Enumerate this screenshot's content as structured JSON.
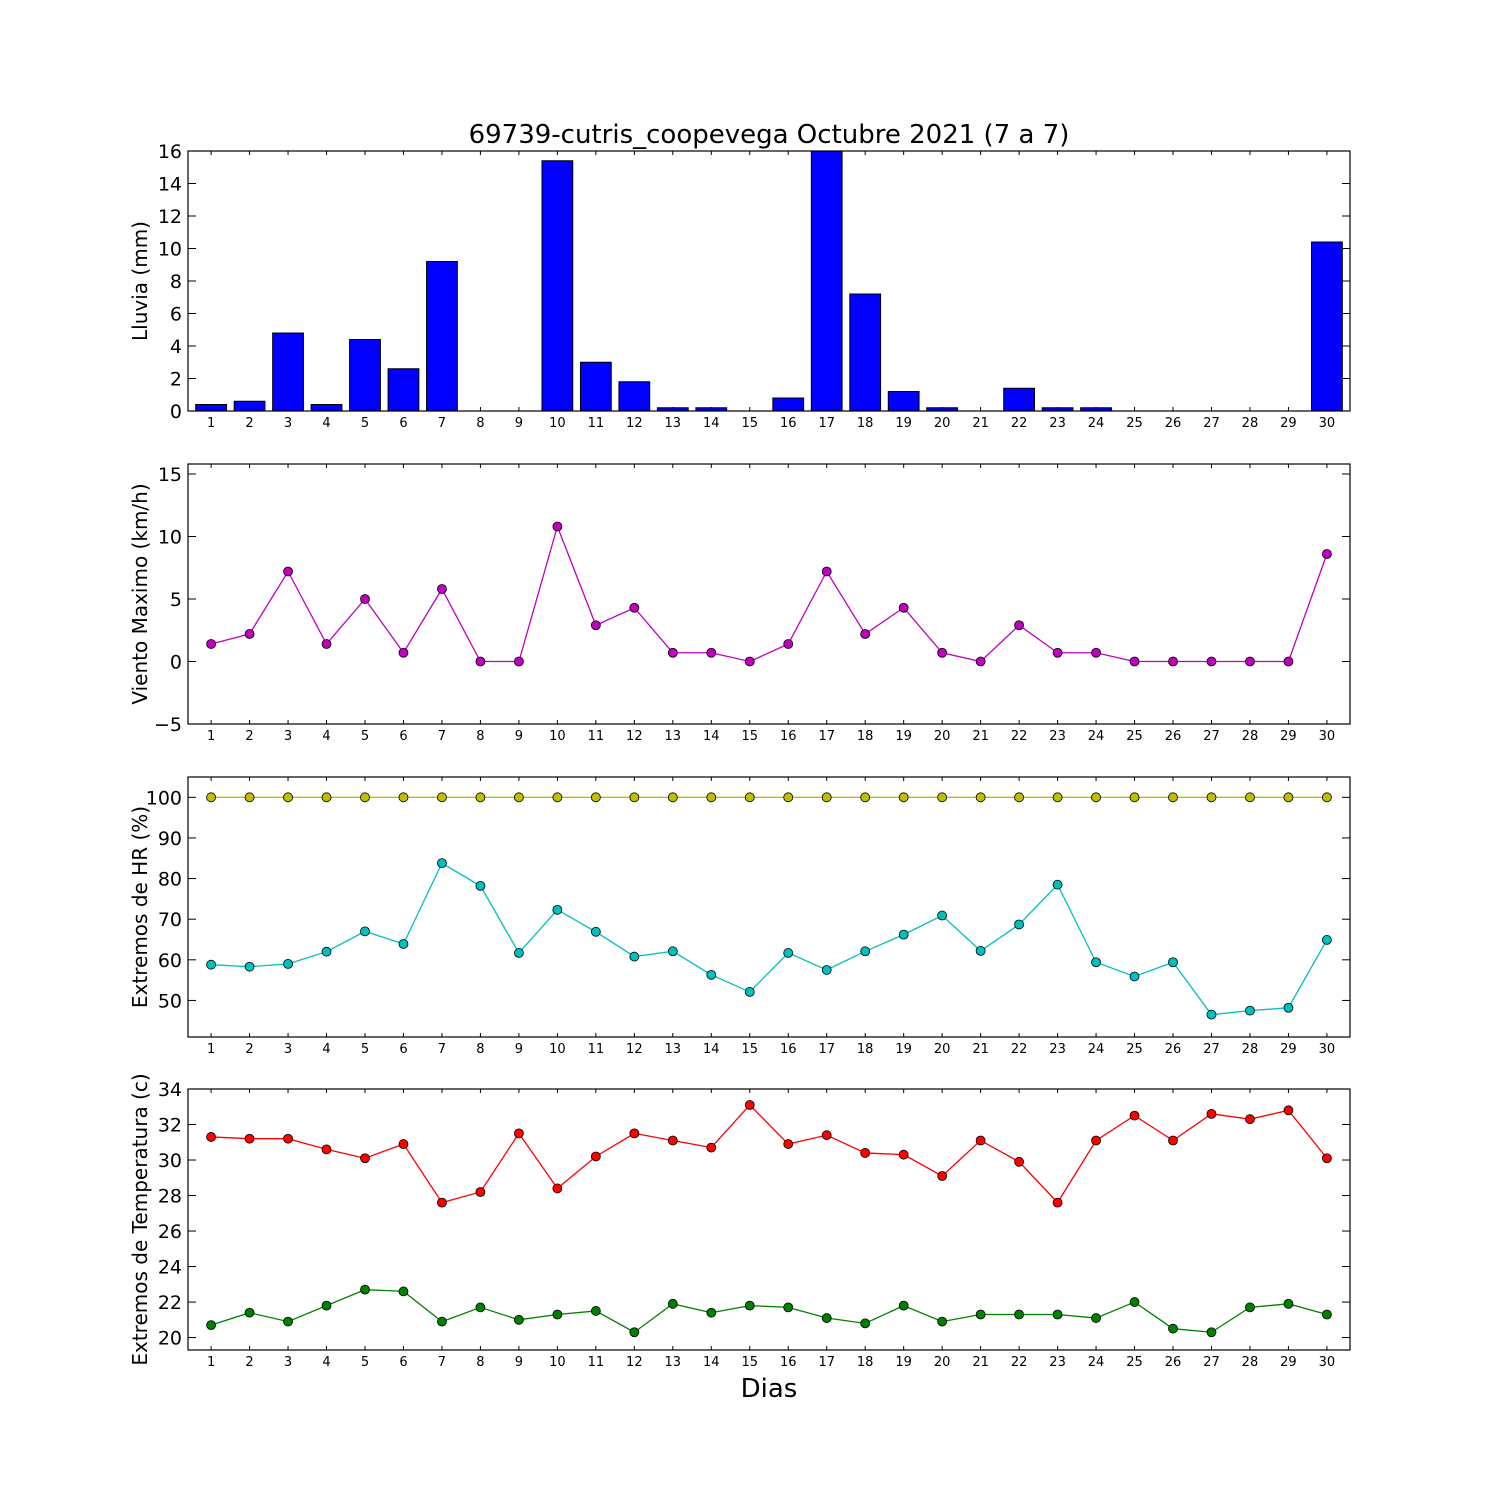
{
  "title": "69739-cutris_coopevega Octubre 2021  (7 a 7)",
  "xlabel": "Dias",
  "colors": {
    "rain_bar": "#0000ff",
    "wind": "#bf00bf",
    "hr_max": "#bfbf00",
    "hr_min": "#00bfbf",
    "temp_max": "#ff0000",
    "temp_min": "#008000"
  },
  "chart_data": [
    {
      "type": "bar",
      "ylabel": "Lluvia (mm)",
      "ylim": [
        0,
        16
      ],
      "yticks": [
        0,
        2,
        4,
        6,
        8,
        10,
        12,
        14,
        16
      ],
      "categories": [
        1,
        2,
        3,
        4,
        5,
        6,
        7,
        8,
        9,
        10,
        11,
        12,
        13,
        14,
        15,
        16,
        17,
        18,
        19,
        20,
        21,
        22,
        23,
        24,
        25,
        26,
        27,
        28,
        29,
        30
      ],
      "series": [
        {
          "values": [
            0.4,
            0.6,
            4.8,
            0.4,
            4.4,
            2.6,
            9.2,
            0,
            0,
            15.4,
            3.0,
            1.8,
            0.2,
            0.2,
            0,
            0.8,
            16.0,
            7.2,
            1.2,
            0.2,
            0,
            1.4,
            0.2,
            0.2,
            0,
            0,
            0,
            0,
            0,
            10.4
          ],
          "color": "#0000ff"
        }
      ],
      "grid": false
    },
    {
      "type": "line",
      "ylabel": "Viento Maximo (km/h)",
      "ylim": [
        -5,
        15.8
      ],
      "yticks": [
        -5,
        0,
        5,
        10,
        15
      ],
      "x": [
        1,
        2,
        3,
        4,
        5,
        6,
        7,
        8,
        9,
        10,
        11,
        12,
        13,
        14,
        15,
        16,
        17,
        18,
        19,
        20,
        21,
        22,
        23,
        24,
        25,
        26,
        27,
        28,
        29,
        30
      ],
      "series": [
        {
          "values": [
            1.4,
            2.2,
            7.2,
            1.4,
            5.0,
            0.7,
            5.8,
            0,
            0,
            10.8,
            2.9,
            4.3,
            0.7,
            0.7,
            0,
            1.4,
            7.2,
            2.2,
            4.3,
            0.7,
            0,
            2.9,
            0.7,
            0.7,
            0,
            0,
            0,
            0,
            0,
            8.6
          ],
          "color": "#bf00bf"
        }
      ],
      "grid": false
    },
    {
      "type": "line",
      "ylabel": "Extremos de HR (%)",
      "ylim": [
        41,
        105
      ],
      "yticks": [
        50,
        60,
        70,
        80,
        90,
        100
      ],
      "x": [
        1,
        2,
        3,
        4,
        5,
        6,
        7,
        8,
        9,
        10,
        11,
        12,
        13,
        14,
        15,
        16,
        17,
        18,
        19,
        20,
        21,
        22,
        23,
        24,
        25,
        26,
        27,
        28,
        29,
        30
      ],
      "series": [
        {
          "values": [
            100,
            100,
            100,
            100,
            100,
            100,
            100,
            100,
            100,
            100,
            100,
            100,
            100,
            100,
            100,
            100,
            100,
            100,
            100,
            100,
            100,
            100,
            100,
            100,
            100,
            100,
            100,
            100,
            100,
            100
          ],
          "color": "#bfbf00"
        },
        {
          "values": [
            58.8,
            58.3,
            59.0,
            62.0,
            67.0,
            63.9,
            83.8,
            78.2,
            61.7,
            72.3,
            66.9,
            60.8,
            62.1,
            56.3,
            52.1,
            61.7,
            57.5,
            62.1,
            66.2,
            70.9,
            62.2,
            68.7,
            78.5,
            59.4,
            55.9,
            59.4,
            46.5,
            47.5,
            48.2,
            64.9
          ],
          "color": "#00bfbf"
        }
      ],
      "grid": false
    },
    {
      "type": "line",
      "ylabel": "Extremos de Temperatura (c)",
      "ylim": [
        19.3,
        34
      ],
      "yticks": [
        20,
        22,
        24,
        26,
        28,
        30,
        32,
        34
      ],
      "x": [
        1,
        2,
        3,
        4,
        5,
        6,
        7,
        8,
        9,
        10,
        11,
        12,
        13,
        14,
        15,
        16,
        17,
        18,
        19,
        20,
        21,
        22,
        23,
        24,
        25,
        26,
        27,
        28,
        29,
        30
      ],
      "series": [
        {
          "values": [
            31.3,
            31.2,
            31.2,
            30.6,
            30.1,
            30.9,
            27.6,
            28.2,
            31.5,
            28.4,
            30.2,
            31.5,
            31.1,
            30.7,
            33.1,
            30.9,
            31.4,
            30.4,
            30.3,
            29.1,
            31.1,
            29.9,
            27.6,
            31.1,
            32.5,
            31.1,
            32.6,
            32.3,
            32.8,
            30.1
          ],
          "color": "#ff0000"
        },
        {
          "values": [
            20.7,
            21.4,
            20.9,
            21.8,
            22.7,
            22.6,
            20.9,
            21.7,
            21.0,
            21.3,
            21.5,
            20.3,
            21.9,
            21.4,
            21.8,
            21.7,
            21.1,
            20.8,
            21.8,
            20.9,
            21.3,
            21.3,
            21.3,
            21.1,
            22.0,
            20.5,
            20.3,
            21.7,
            21.9,
            21.3
          ],
          "color": "#008000"
        }
      ],
      "grid": false
    }
  ]
}
